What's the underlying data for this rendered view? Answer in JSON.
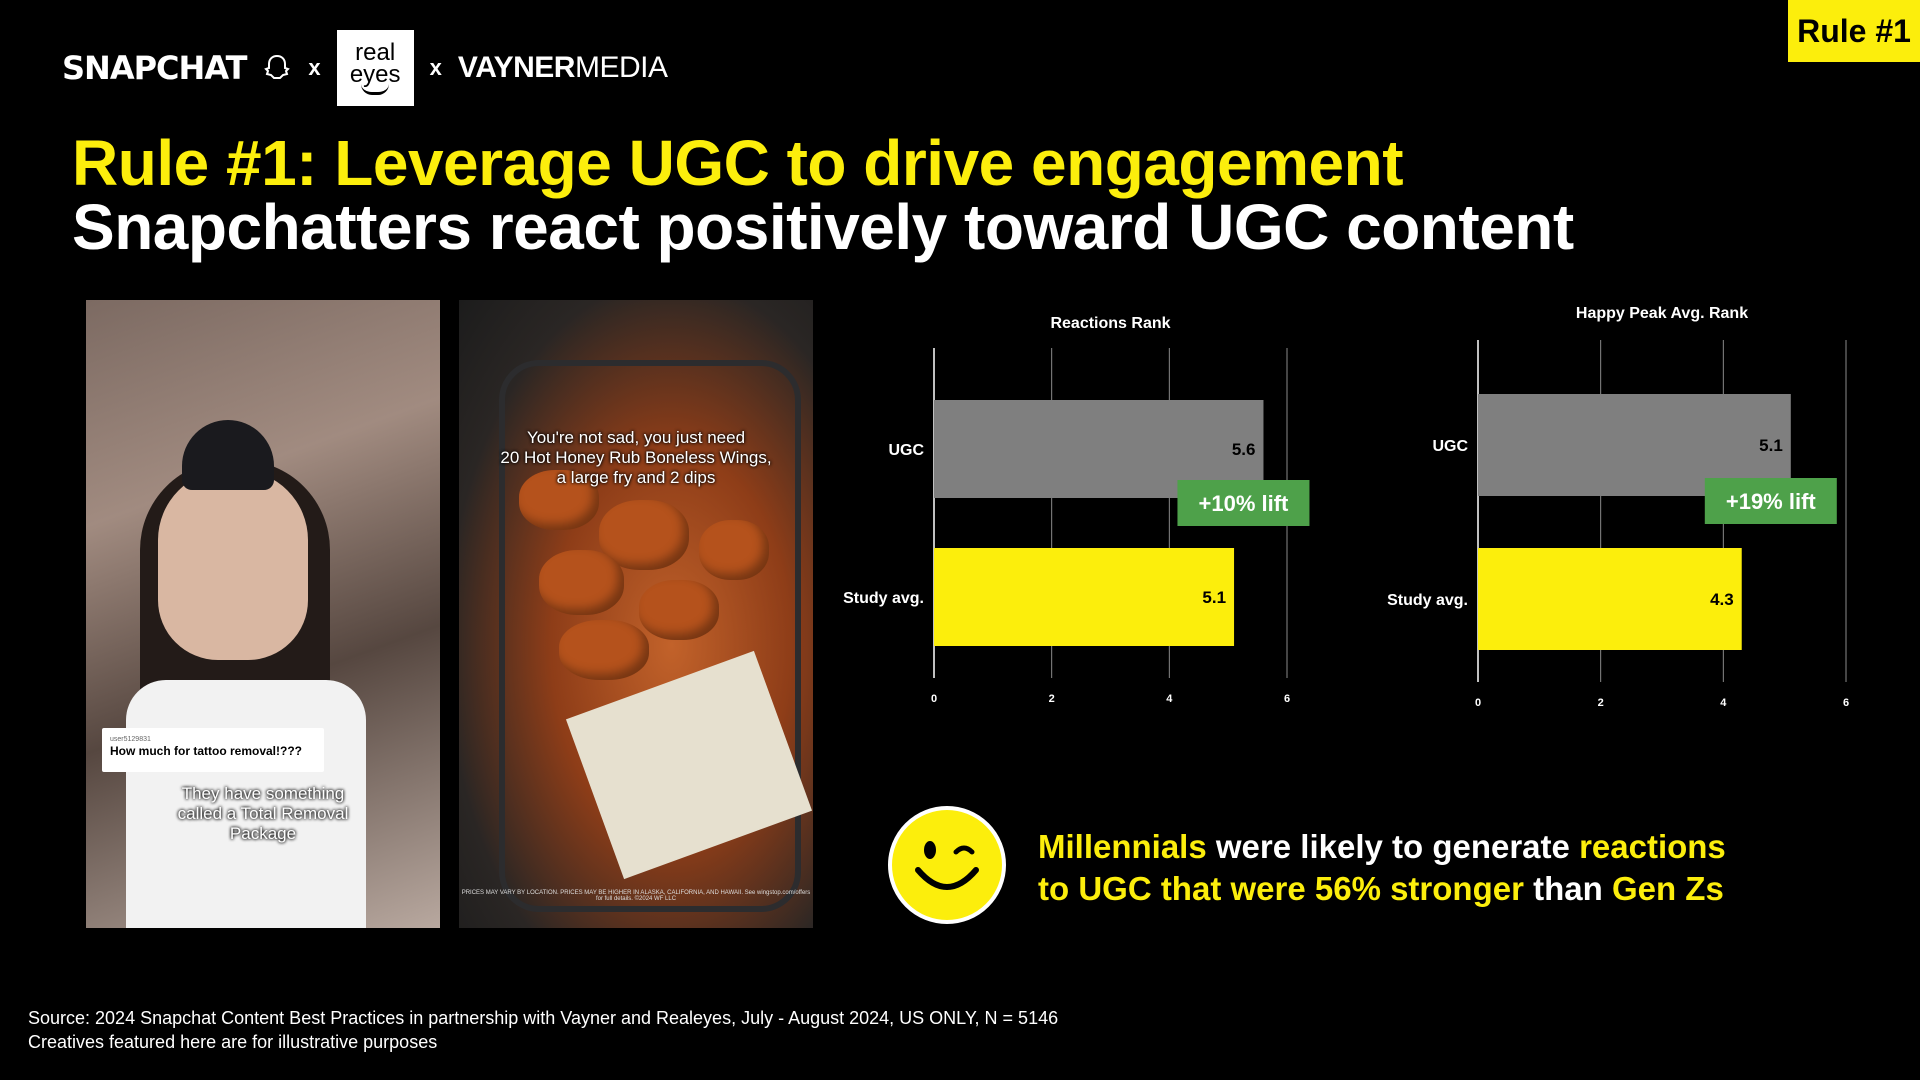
{
  "header": {
    "logo_snapchat": "SNAPCHAT",
    "x1": "x",
    "logo_realeyes_1": "real",
    "logo_realeyes_2": "eyes",
    "x2": "x",
    "logo_vayner_bold": "VAYNER",
    "logo_vayner_rest": "MEDIA",
    "badge": "Rule #1"
  },
  "titles": {
    "line1": "Rule #1: Leverage UGC to drive engagement",
    "line2": "Snapchatters react positively toward UGC content"
  },
  "creatives": {
    "one": {
      "comment_user": "user5129831",
      "comment_text": "How much for tattoo removal!???",
      "caption_1": "They have something",
      "caption_2": "called a Total Removal",
      "caption_3": "Package"
    },
    "two": {
      "caption_1": "You're not sad, you just need",
      "caption_2": "20 Hot Honey Rub Boneless Wings,",
      "caption_3": "a large fry and 2 dips",
      "fineprint": "PRICES MAY VARY BY LOCATION. PRICES MAY BE HIGHER IN ALASKA, CALIFORNIA, AND HAWAII. See wingstop.com/offers for full details. ©2024 WF LLC"
    }
  },
  "colors": {
    "yellow": "#fcee0c",
    "ugc_bar": "#7f7f7f",
    "lift_green": "#4ea14a"
  },
  "chart_data": [
    {
      "type": "bar",
      "orientation": "horizontal",
      "title": "Reactions Rank",
      "categories": [
        "UGC",
        "Study avg."
      ],
      "values": [
        5.6,
        5.1
      ],
      "xlim": [
        0,
        6
      ],
      "xticks": [
        0,
        2,
        4,
        6
      ],
      "grid": true,
      "annotation": "+10% lift"
    },
    {
      "type": "bar",
      "orientation": "horizontal",
      "title": "Happy Peak Avg. Rank",
      "categories": [
        "UGC",
        "Study avg."
      ],
      "values": [
        5.1,
        4.3
      ],
      "xlim": [
        0,
        6
      ],
      "xticks": [
        0,
        2,
        4,
        6
      ],
      "grid": true,
      "annotation": "+19% lift"
    }
  ],
  "insight": {
    "p1": "Millennials",
    "p2": " were likely to generate ",
    "p3": "reactions",
    "p4": "to UGC that were 56% stronger",
    "p5": " than ",
    "p6": "Gen Zs"
  },
  "source": {
    "line1": "Source: 2024 Snapchat Content Best Practices in partnership with Vayner and Realeyes, July - August 2024, US ONLY, N = 5146",
    "line2": "Creatives featured here are for illustrative purposes"
  }
}
